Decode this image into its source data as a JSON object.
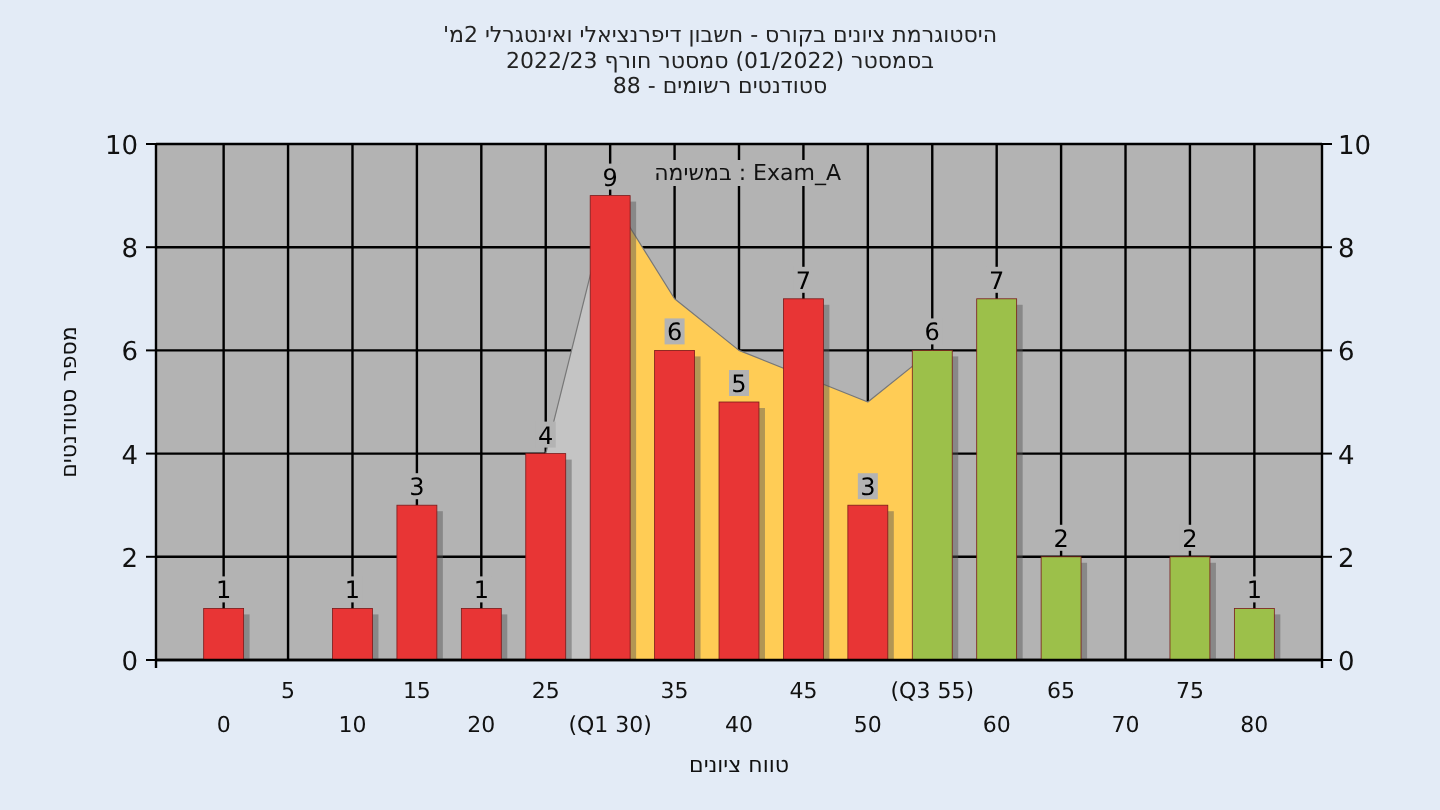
{
  "chart_data": {
    "type": "bar",
    "title": "'היסטוגרמת ציונים בקורס - חשבון דיפרנציאלי ואינטגרלי 2מ",
    "subtitle": "בסמסטר  (01/2022)  סמסטר חורף  2022/23\nסטודנטים רשומים - 88",
    "xlabel": "טווח ציונים",
    "ylabel": "מספר סטודנטים",
    "annotations": [
      "במשימה : Exam_A"
    ],
    "categories": [
      "0",
      "5",
      "10",
      "15",
      "20",
      "25",
      "(Q1 30)",
      "35",
      "40",
      "45",
      "50",
      "(Q3 55)",
      "60",
      "65",
      "70",
      "75",
      "80"
    ],
    "series": [
      {
        "type": "area",
        "color": "#c4c4c4",
        "values": [
          null,
          null,
          null,
          null,
          null,
          4,
          9,
          null,
          null,
          null,
          null,
          null,
          null,
          null,
          null,
          null,
          null
        ]
      },
      {
        "type": "area",
        "color": "#ffcc55",
        "values": [
          null,
          null,
          null,
          null,
          null,
          null,
          9,
          7,
          6,
          null,
          5,
          6,
          null,
          null,
          null,
          null,
          null
        ]
      },
      {
        "colors": [
          "#e83535",
          "#e83535",
          "#e83535",
          "#e83535",
          "#e83535",
          "#e83535",
          "#e83535",
          "#e83535",
          "#e83535",
          "#e83535",
          "#e83535",
          "#9cc04a",
          "#9cc04a",
          "#9cc04a",
          "#9cc04a",
          "#9cc04a",
          "#9cc04a"
        ],
        "values": [
          1,
          0,
          1,
          3,
          1,
          4,
          9,
          6,
          5,
          7,
          3,
          6,
          7,
          2,
          0,
          2,
          1
        ],
        "value_labels": [
          "1",
          null,
          "1",
          "3",
          "1",
          "4",
          "9",
          "6",
          "5",
          "7",
          "3",
          "6",
          "7",
          "2",
          null,
          "2",
          "1"
        ]
      }
    ],
    "ylim": [
      0,
      10
    ],
    "yticks": [
      0,
      2,
      4,
      6,
      8,
      10
    ],
    "y2lim": [
      0,
      10
    ],
    "y2ticks": [
      0,
      2,
      4,
      6,
      8,
      10
    ],
    "grid": true
  }
}
